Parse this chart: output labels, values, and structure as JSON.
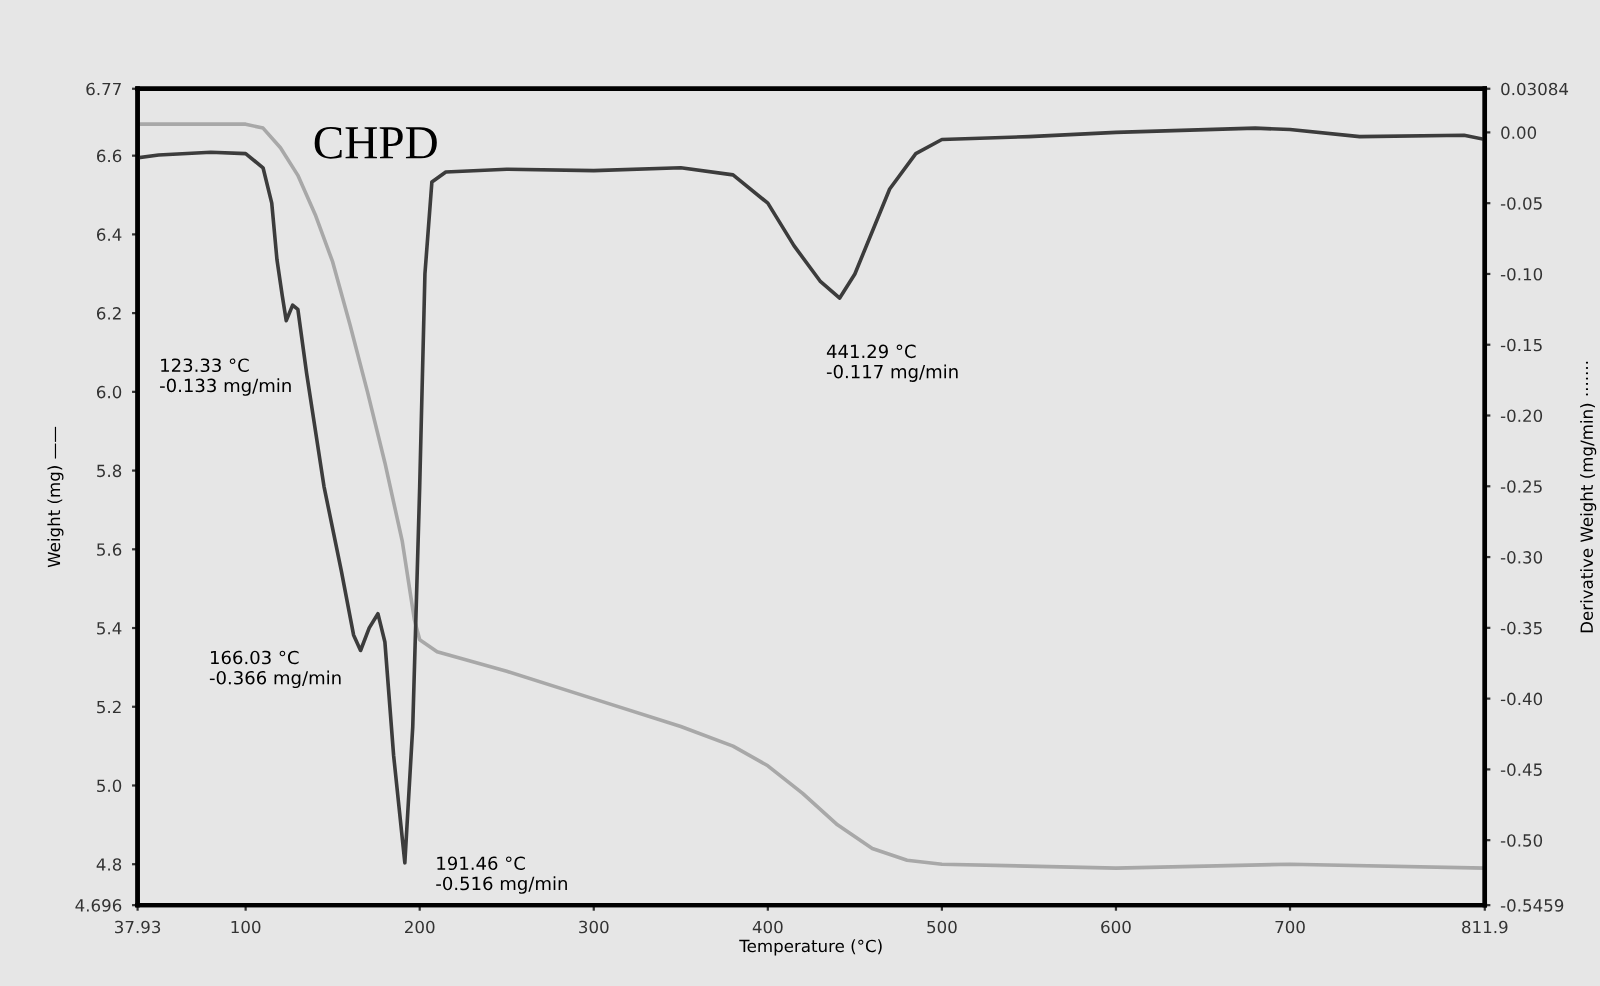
{
  "chart_data": {
    "type": "line",
    "title": "CHPD",
    "xlabel": "Temperature (°C)",
    "ylabel": "Weight (mg) ——",
    "y2label": "Derivative Weight (mg/min) ·······",
    "xlim": [
      37.93,
      811.9
    ],
    "xticks": [
      37.93,
      100,
      200,
      300,
      400,
      500,
      600,
      700,
      811.9
    ],
    "ylim": [
      4.696,
      6.77
    ],
    "yticks": [
      4.696,
      4.8,
      {
        "value": 5,
        "label": "5.0"
      },
      5.2,
      5.4,
      5.6,
      5.8,
      {
        "value": 6,
        "label": "6.0"
      },
      6.2,
      6.4,
      6.6,
      6.77
    ],
    "y2lim": [
      -0.5459,
      0.03084
    ],
    "y2ticks": [
      -0.5459,
      {
        "value": -0.5,
        "label": "-0.50"
      },
      -0.45,
      {
        "value": -0.4,
        "label": "-0.40"
      },
      -0.35,
      {
        "value": -0.3,
        "label": "-0.30"
      },
      -0.25,
      {
        "value": -0.2,
        "label": "-0.20"
      },
      -0.15,
      {
        "value": -0.1,
        "label": "-0.10"
      },
      -0.05,
      {
        "value": 0,
        "label": "0.00"
      },
      0.03084
    ],
    "grid": false,
    "legend": false,
    "series": [
      {
        "color": "#a8a8a8",
        "x": [
          37.93,
          100,
          110,
          120,
          130,
          140,
          150,
          160,
          170,
          180,
          190,
          197,
          200,
          210,
          250,
          300,
          350,
          380,
          400,
          420,
          440,
          460,
          480,
          500,
          600,
          700,
          811.9
        ],
        "values": [
          6.68,
          6.68,
          6.67,
          6.62,
          6.55,
          6.45,
          6.33,
          6.17,
          6.0,
          5.82,
          5.62,
          5.42,
          5.37,
          5.34,
          5.29,
          5.22,
          5.15,
          5.1,
          5.05,
          4.98,
          4.9,
          4.84,
          4.81,
          4.8,
          4.79,
          4.8,
          4.79
        ]
      },
      {
        "color": "#3c3c3c",
        "axis": "y2",
        "x": [
          37.93,
          50,
          80,
          100,
          110,
          115,
          118,
          121,
          123.33,
          127,
          130,
          135,
          145,
          155,
          162,
          166.03,
          171,
          176,
          180,
          185,
          191.46,
          196,
          200,
          203,
          207,
          215,
          250,
          300,
          350,
          380,
          400,
          415,
          430,
          441.29,
          450,
          460,
          470,
          485,
          500,
          550,
          600,
          680,
          700,
          740,
          800,
          811.9
        ],
        "values": [
          -0.018,
          -0.016,
          -0.014,
          -0.015,
          -0.025,
          -0.05,
          -0.09,
          -0.115,
          -0.133,
          -0.122,
          -0.125,
          -0.17,
          -0.25,
          -0.31,
          -0.355,
          -0.366,
          -0.35,
          -0.34,
          -0.36,
          -0.44,
          -0.516,
          -0.42,
          -0.25,
          -0.1,
          -0.035,
          -0.028,
          -0.026,
          -0.027,
          -0.025,
          -0.03,
          -0.05,
          -0.08,
          -0.105,
          -0.117,
          -0.1,
          -0.07,
          -0.04,
          -0.015,
          -0.005,
          -0.003,
          0.0,
          0.003,
          0.002,
          -0.003,
          -0.002,
          -0.005
        ]
      }
    ],
    "annotations": [
      "123.33 °C\n-0.133 mg/min",
      "166.03 °C\n-0.366 mg/min",
      "191.46 °C\n-0.516 mg/min",
      "441.29 °C\n-0.117 mg/min"
    ]
  }
}
